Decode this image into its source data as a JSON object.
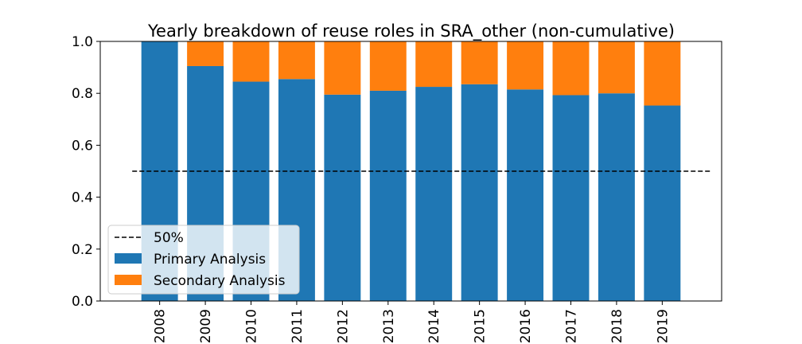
{
  "chart_data": {
    "type": "bar",
    "stacked": true,
    "title": "Yearly breakdown of reuse roles in SRA_other (non-cumulative)",
    "xlabel": "",
    "ylabel": "",
    "categories": [
      "2008",
      "2009",
      "2010",
      "2011",
      "2012",
      "2013",
      "2014",
      "2015",
      "2016",
      "2017",
      "2018",
      "2019"
    ],
    "series": [
      {
        "name": "Primary Analysis",
        "color": "#1f77b4",
        "values": [
          1.0,
          0.905,
          0.845,
          0.855,
          0.795,
          0.81,
          0.825,
          0.835,
          0.815,
          0.793,
          0.8,
          0.753
        ]
      },
      {
        "name": "Secondary Analysis",
        "color": "#ff7f0e",
        "values": [
          0.0,
          0.095,
          0.155,
          0.145,
          0.205,
          0.19,
          0.175,
          0.165,
          0.185,
          0.207,
          0.2,
          0.247
        ]
      }
    ],
    "reference_line": {
      "name": "50%",
      "value": 0.5,
      "style": "dashed",
      "color": "#000000"
    },
    "ylim": [
      0.0,
      1.0
    ],
    "yticks": [
      "0.0",
      "0.2",
      "0.4",
      "0.6",
      "0.8",
      "1.0"
    ],
    "grid": false,
    "legend_position": "lower-left"
  }
}
